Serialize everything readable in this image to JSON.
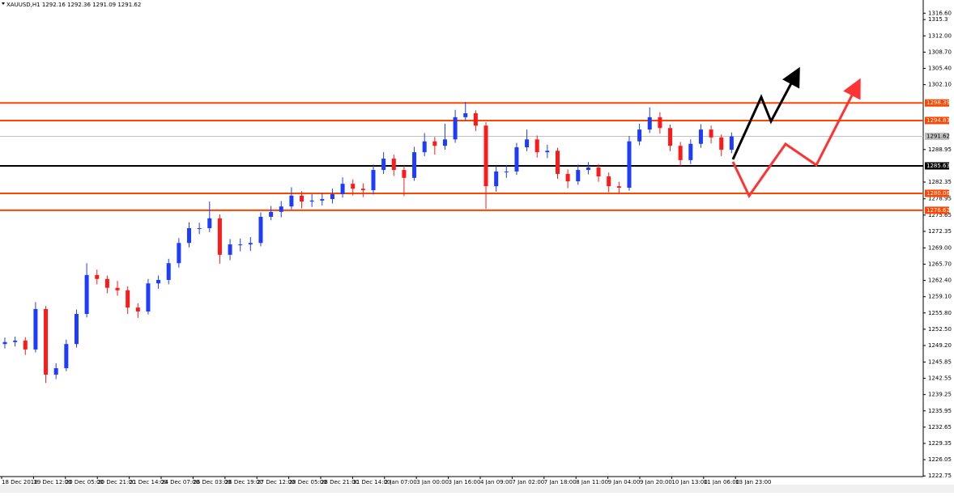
{
  "chart_data": {
    "type": "candlestick",
    "title": "XAUUSD,H1  1292.16 1292.36 1291.09 1291.62",
    "categories": [
      "18 Dec 2018",
      "19 Dec 12:00",
      "20 Dec 05:00",
      "20 Dec 21:00",
      "21 Dec 14:00",
      "24 Dec 07:00",
      "26 Dec 03:00",
      "26 Dec 19:00",
      "27 Dec 12:00",
      "28 Dec 05:00",
      "28 Dec 21:00",
      "31 Dec 14:00",
      "2 Jan 07:00",
      "3 Jan 00:00",
      "3 Jan 16:00",
      "4 Jan 09:00",
      "7 Jan 02:00",
      "7 Jan 18:00",
      "8 Jan 11:00",
      "9 Jan 04:00",
      "9 Jan 20:00",
      "10 Jan 13:00",
      "11 Jan 06:00",
      "13 Jan 23:00"
    ],
    "up_color": "#1e3cff",
    "down_color": "#ff1a1a",
    "open": [
      1249.5,
      1249.9,
      1250.2,
      1248.4,
      1256.6,
      1243.3,
      1244.6,
      1249.5,
      1255.6,
      1263.5,
      1262.7,
      1260.9,
      1260.4,
      1256.9,
      1256.1,
      1261.8,
      1262.5,
      1265.9,
      1270.0,
      1273.0,
      1273.0,
      1275.0,
      1267.6,
      1269.7,
      1269.7,
      1270.0,
      1275.3,
      1276.3,
      1277.4,
      1279.6,
      1278.4,
      1278.6,
      1278.9,
      1279.9,
      1282.0,
      1281.0,
      1280.7,
      1284.8,
      1287.1,
      1284.8,
      1283.2,
      1288.4,
      1290.6,
      1289.7,
      1291.0,
      1295.5,
      1296.3,
      1293.8,
      1281.5,
      1284.5,
      1284.5,
      1289.4,
      1291.0,
      1288.4,
      1288.7,
      1284.0,
      1282.5,
      1284.8,
      1285.3,
      1283.5,
      1281.5,
      1281.2,
      1290.6,
      1293.0,
      1295.5,
      1293.3,
      1289.7,
      1286.8,
      1290.1,
      1293.0,
      1291.4,
      1288.9
    ],
    "high": [
      1250.8,
      1251.0,
      1250.9,
      1258.0,
      1257.2,
      1245.6,
      1250.4,
      1256.5,
      1265.9,
      1264.6,
      1263.4,
      1262.3,
      1261.2,
      1257.8,
      1262.7,
      1263.4,
      1266.8,
      1271.0,
      1274.2,
      1274.1,
      1278.4,
      1275.8,
      1270.8,
      1270.9,
      1271.2,
      1276.2,
      1277.5,
      1278.5,
      1281.3,
      1280.5,
      1279.9,
      1280.1,
      1281.0,
      1283.3,
      1282.9,
      1282.1,
      1285.9,
      1288.4,
      1287.9,
      1285.6,
      1289.5,
      1292.3,
      1291.5,
      1294.2,
      1297.0,
      1298.6,
      1296.9,
      1294.5,
      1285.6,
      1285.8,
      1290.3,
      1293.0,
      1291.8,
      1289.9,
      1289.3,
      1284.9,
      1285.9,
      1286.4,
      1286.0,
      1284.3,
      1282.4,
      1291.7,
      1294.2,
      1297.5,
      1296.5,
      1294.0,
      1290.5,
      1291.0,
      1294.1,
      1293.8,
      1292.0,
      1292.4
    ],
    "low": [
      1248.6,
      1249.0,
      1247.3,
      1247.8,
      1241.6,
      1242.4,
      1244.0,
      1248.8,
      1254.9,
      1261.6,
      1259.8,
      1259.3,
      1255.6,
      1254.8,
      1255.5,
      1260.7,
      1261.6,
      1265.0,
      1269.1,
      1271.8,
      1272.2,
      1265.8,
      1266.5,
      1268.3,
      1268.4,
      1269.3,
      1274.6,
      1275.2,
      1276.8,
      1277.0,
      1277.3,
      1277.6,
      1278.0,
      1279.2,
      1279.6,
      1279.3,
      1279.8,
      1284.0,
      1283.6,
      1279.5,
      1282.6,
      1287.6,
      1287.9,
      1288.9,
      1290.3,
      1294.8,
      1292.7,
      1276.9,
      1280.4,
      1283.2,
      1283.8,
      1288.6,
      1287.3,
      1287.2,
      1283.0,
      1281.1,
      1281.8,
      1283.9,
      1282.4,
      1280.3,
      1280.0,
      1280.6,
      1289.8,
      1292.3,
      1292.2,
      1288.6,
      1285.6,
      1286.0,
      1289.3,
      1290.2,
      1287.6,
      1288.2
    ],
    "close": [
      1249.9,
      1250.2,
      1248.4,
      1256.6,
      1243.3,
      1244.6,
      1249.5,
      1255.6,
      1263.5,
      1262.7,
      1260.9,
      1260.4,
      1256.9,
      1256.1,
      1261.8,
      1262.5,
      1265.9,
      1270.0,
      1273.0,
      1273.0,
      1275.0,
      1267.6,
      1269.7,
      1269.7,
      1270.0,
      1275.3,
      1276.3,
      1277.4,
      1279.6,
      1278.4,
      1278.6,
      1278.9,
      1279.9,
      1282.0,
      1281.0,
      1280.7,
      1284.8,
      1287.1,
      1284.8,
      1283.2,
      1288.4,
      1290.6,
      1289.7,
      1291.0,
      1295.5,
      1296.3,
      1293.8,
      1281.5,
      1284.5,
      1284.5,
      1289.4,
      1291.0,
      1288.4,
      1288.7,
      1284.0,
      1282.5,
      1284.8,
      1285.3,
      1283.5,
      1281.5,
      1281.2,
      1290.6,
      1293.0,
      1295.5,
      1293.3,
      1289.7,
      1286.8,
      1290.1,
      1293.0,
      1291.4,
      1288.9,
      1291.6
    ],
    "levels": [
      {
        "value": 1298.39,
        "color": "#ff4500"
      },
      {
        "value": 1294.83,
        "color": "#ff4500"
      },
      {
        "value": 1285.63,
        "color": "#000000"
      },
      {
        "value": 1280.06,
        "color": "#ff4500"
      },
      {
        "value": 1276.62,
        "color": "#ff4500"
      },
      {
        "value": 1291.62,
        "color": "#c0c0c0"
      }
    ],
    "ylim": [
      1222.62,
      1319.27
    ],
    "yticks": [
      {
        "value": 1316.6,
        "label": "1316.60"
      },
      1315.3,
      {
        "value": 1312,
        "label": "1312.00"
      },
      {
        "value": 1308.7,
        "label": "1308.70"
      },
      {
        "value": 1305.4,
        "label": "1305.40"
      },
      {
        "value": 1302.1,
        "label": "1302.10"
      },
      1288.95,
      1282.35,
      1278.95,
      1275.65,
      1272.35,
      {
        "value": 1269,
        "label": "1269.00"
      },
      {
        "value": 1265.7,
        "label": "1265.70"
      },
      {
        "value": 1262.4,
        "label": "1262.40"
      },
      {
        "value": 1259.1,
        "label": "1259.10"
      },
      {
        "value": 1255.8,
        "label": "1255.80"
      },
      {
        "value": 1252.5,
        "label": "1252.50"
      },
      {
        "value": 1249.2,
        "label": "1249.20"
      },
      1245.85,
      1242.55,
      1239.25,
      1235.95,
      1232.65,
      1229.35,
      1226.05,
      1222.75
    ]
  }
}
